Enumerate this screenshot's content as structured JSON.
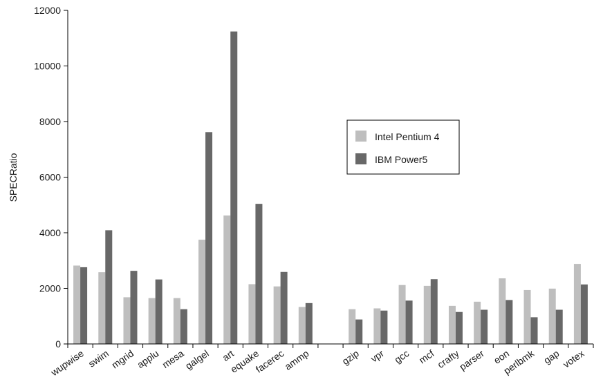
{
  "chart_data": {
    "type": "bar",
    "title": "",
    "xlabel": "",
    "ylabel": "SPECRatio",
    "ylim": [
      0,
      12000
    ],
    "yticks": [
      0,
      2000,
      4000,
      6000,
      8000,
      10000,
      12000
    ],
    "grid": false,
    "legend_position": "center-right",
    "group_gap_after_index": 9,
    "categories": [
      "wupwise",
      "swim",
      "mgrid",
      "applu",
      "mesa",
      "galgel",
      "art",
      "equake",
      "facerec",
      "ammp",
      "gzip",
      "vpr",
      "gcc",
      "mcf",
      "crafty",
      "parser",
      "eon",
      "perlbmk",
      "gap",
      "votex"
    ],
    "series": [
      {
        "name": "Intel Pentium 4",
        "color": "#bebebe",
        "values": [
          2820,
          2580,
          1680,
          1650,
          1650,
          3750,
          4620,
          2150,
          2070,
          1330,
          1250,
          1280,
          2120,
          2090,
          1370,
          1520,
          2360,
          1940,
          1990,
          2880
        ]
      },
      {
        "name": "IBM Power5",
        "color": "#686868",
        "values": [
          2760,
          4090,
          2630,
          2320,
          1250,
          7620,
          11240,
          5040,
          2590,
          1470,
          880,
          1200,
          1560,
          2330,
          1150,
          1230,
          1580,
          960,
          1230,
          2140
        ]
      }
    ]
  }
}
